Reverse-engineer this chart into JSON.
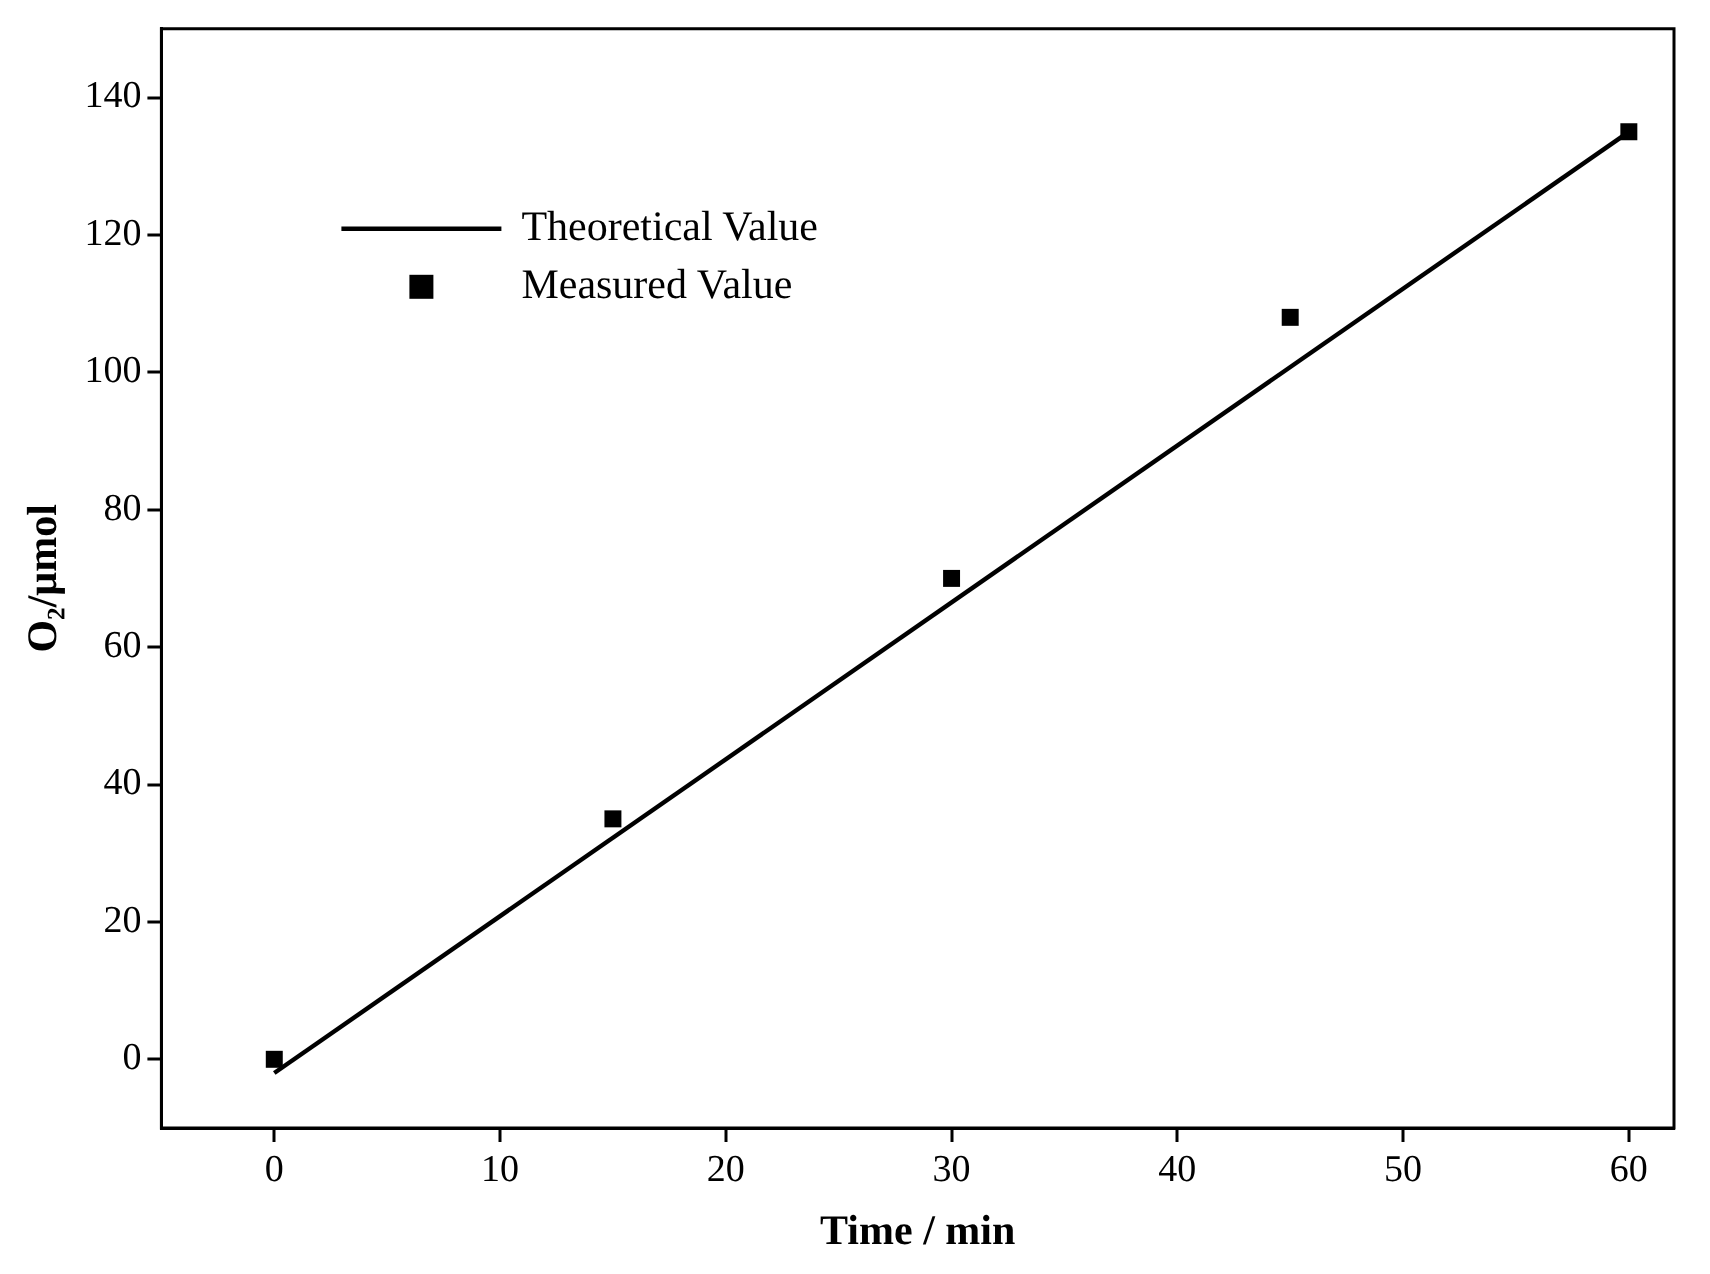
{
  "chart_data": {
    "type": "scatter",
    "xlabel": "Time / min",
    "ylabel": "O₂/μmol",
    "xlim": [
      -5,
      62
    ],
    "xticks": [
      0,
      10,
      20,
      30,
      40,
      50,
      60
    ],
    "ylim": [
      -10,
      150
    ],
    "yticks": [
      0,
      20,
      40,
      60,
      80,
      100,
      120,
      140
    ],
    "grid": false,
    "legend": "top left",
    "series": [
      {
        "name": "Theoretical Value",
        "type": "line",
        "color": "#000000",
        "x": [
          0,
          60
        ],
        "values": [
          -2,
          135
        ],
        "line_style": "solid",
        "marker": "none"
      },
      {
        "name": "Measured Value",
        "type": "scatter",
        "color": "#000000",
        "x": [
          0,
          15,
          30,
          45,
          60
        ],
        "values": [
          0,
          35,
          70,
          108,
          135
        ],
        "marker": "square"
      }
    ]
  }
}
